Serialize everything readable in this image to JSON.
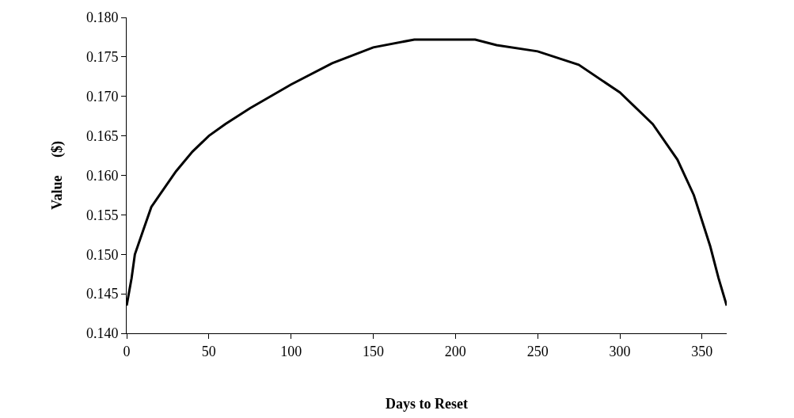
{
  "chart_data": {
    "type": "line",
    "xlabel": "Days to Reset",
    "ylabel": "Value     ($)",
    "x": [
      0,
      3,
      5,
      10,
      15,
      20,
      30,
      40,
      50,
      60,
      75,
      100,
      125,
      150,
      175,
      200,
      212,
      225,
      250,
      275,
      300,
      320,
      335,
      345,
      355,
      360,
      365
    ],
    "series": [
      {
        "color": "#000000",
        "values": [
          0.1435,
          0.147,
          0.15,
          0.153,
          0.156,
          0.1575,
          0.1605,
          0.163,
          0.165,
          0.1665,
          0.1685,
          0.1715,
          0.1742,
          0.1762,
          0.1772,
          0.1772,
          0.1772,
          0.1765,
          0.1757,
          0.174,
          0.1705,
          0.1665,
          0.162,
          0.1575,
          0.151,
          0.147,
          0.1435
        ]
      }
    ],
    "xlim": [
      0,
      365
    ],
    "xticks": [
      0,
      50,
      100,
      150,
      200,
      250,
      300,
      350
    ],
    "ylim": [
      0.14,
      0.18
    ],
    "yticks": [
      {
        "value": 0.14,
        "label": "0.140"
      },
      {
        "value": 0.145,
        "label": "0.145"
      },
      {
        "value": 0.15,
        "label": "0.150"
      },
      {
        "value": 0.155,
        "label": "0.155"
      },
      {
        "value": 0.16,
        "label": "0.160"
      },
      {
        "value": 0.165,
        "label": "0.165"
      },
      {
        "value": 0.17,
        "label": "0.170"
      },
      {
        "value": 0.175,
        "label": "0.175"
      },
      {
        "value": 0.18,
        "label": "0.180"
      }
    ],
    "marker": "none",
    "line_style": "solid"
  }
}
